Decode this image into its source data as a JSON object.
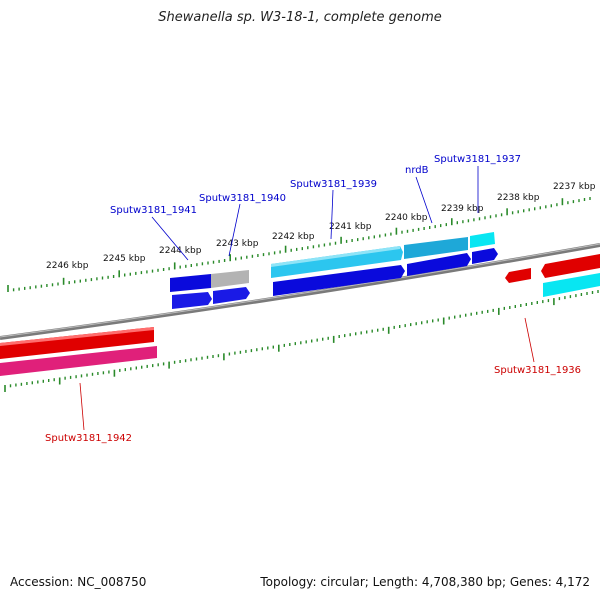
{
  "title": "Shewanella sp. W3-18-1, complete genome",
  "footer": {
    "accession": "Accession: NC_008750",
    "info": "Topology: circular; Length: 4,708,380 bp; Genes: 4,172"
  },
  "colors": {
    "forward_gene": "#0a0adc",
    "forward_gene_alt": "#22c4ee",
    "forward_gene_cyan": "#00e8f0",
    "reverse_gene": "#e00000",
    "reverse_gene_alt": "#e0207a",
    "backbone": "#888888",
    "ticks": "#2a8a2a",
    "label_forward": "#0000cc",
    "label_reverse": "#cc0000"
  },
  "scale_labels": [
    "2237 kbp",
    "2238 kbp",
    "2239 kbp",
    "2240 kbp",
    "2241 kbp",
    "2242 kbp",
    "2243 kbp",
    "2244 kbp",
    "2245 kbp",
    "2246 kbp"
  ],
  "gene_labels": [
    {
      "text": "Sputw3181_1937",
      "strand": "forward"
    },
    {
      "text": "nrdB",
      "strand": "forward"
    },
    {
      "text": "Sputw3181_1939",
      "strand": "forward"
    },
    {
      "text": "Sputw3181_1940",
      "strand": "forward"
    },
    {
      "text": "Sputw3181_1941",
      "strand": "forward"
    },
    {
      "text": "Sputw3181_1936",
      "strand": "reverse"
    },
    {
      "text": "Sputw3181_1942",
      "strand": "reverse"
    }
  ]
}
